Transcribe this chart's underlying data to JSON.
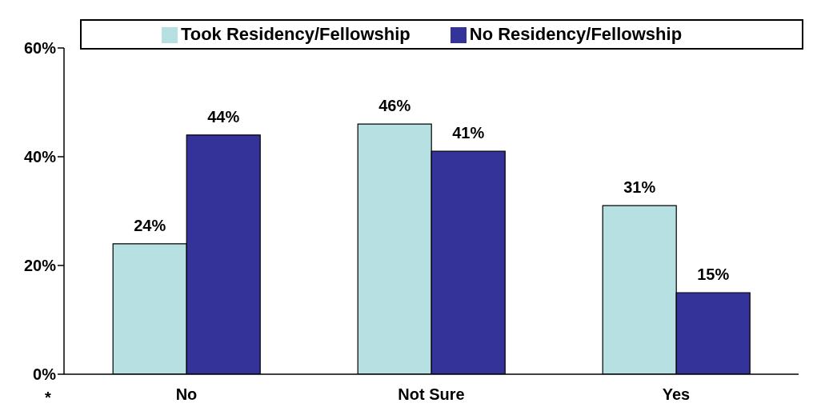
{
  "chart_data": {
    "type": "bar",
    "categories": [
      "No",
      "Not Sure",
      "Yes"
    ],
    "series": [
      {
        "name": "Took Residency/Fellowship",
        "color": "#b7e0e3",
        "values": [
          24,
          46,
          31
        ],
        "value_labels": [
          "24%",
          "46%",
          "31%"
        ]
      },
      {
        "name": "No Residency/Fellowship",
        "color": "#333399",
        "values": [
          44,
          41,
          15
        ],
        "value_labels": [
          "44%",
          "41%",
          "15%"
        ]
      }
    ],
    "ylim": [
      0,
      60
    ],
    "yticks": [
      {
        "value": 0,
        "label": "0%"
      },
      {
        "value": 20,
        "label": "20%"
      },
      {
        "value": 40,
        "label": "40%"
      },
      {
        "value": 60,
        "label": "60%"
      }
    ],
    "grid": false,
    "legend": "top",
    "annotations": [
      "*"
    ]
  }
}
